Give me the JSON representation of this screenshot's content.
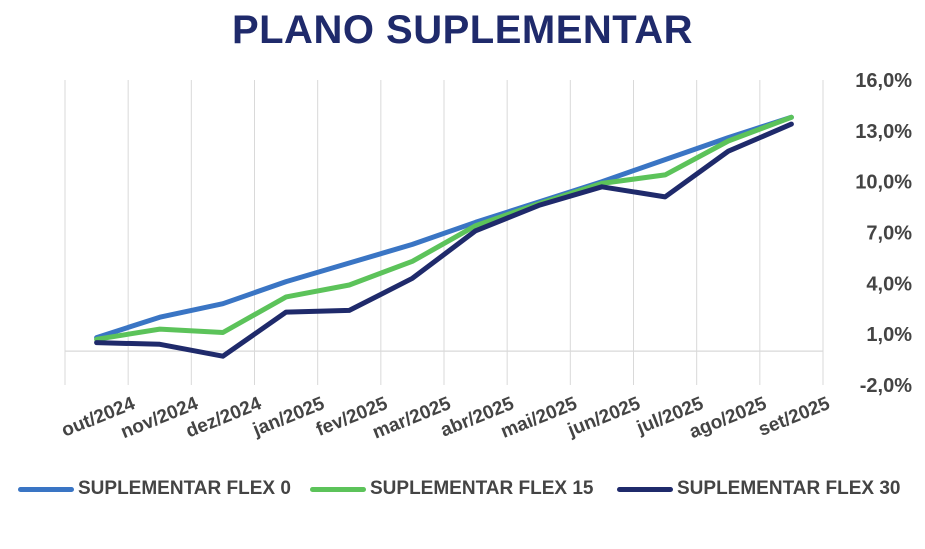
{
  "chart_data": {
    "type": "line",
    "title": "PLANO SUPLEMENTAR",
    "xlabel": "",
    "ylabel": "",
    "categories": [
      "out/2024",
      "nov/2024",
      "dez/2024",
      "jan/2025",
      "fev/2025",
      "mar/2025",
      "abr/2025",
      "mai/2025",
      "jun/2025",
      "jul/2025",
      "ago/2025",
      "set/2025"
    ],
    "yticks": [
      "16,0%",
      "13,0%",
      "10,0%",
      "7,0%",
      "4,0%",
      "1,0%",
      "-2,0%"
    ],
    "ylim": [
      -2.0,
      16.0
    ],
    "y_axis_side": "right",
    "grid": "vertical",
    "legend_position": "bottom",
    "series": [
      {
        "name": "SUPLEMENTAR FLEX 0",
        "color": "#3a75c4",
        "values": [
          0.8,
          2.0,
          2.8,
          4.1,
          5.2,
          6.3,
          7.6,
          8.8,
          10.0,
          11.3,
          12.6,
          13.8
        ]
      },
      {
        "name": "SUPLEMENTAR FLEX 15",
        "color": "#5cc35a",
        "values": [
          0.7,
          1.3,
          1.1,
          3.2,
          3.9,
          5.3,
          7.4,
          8.7,
          9.9,
          10.4,
          12.4,
          13.8
        ]
      },
      {
        "name": "SUPLEMENTAR FLEX 30",
        "color": "#1f2a6b",
        "values": [
          0.5,
          0.4,
          -0.3,
          2.3,
          2.4,
          4.3,
          7.1,
          8.6,
          9.7,
          9.1,
          11.8,
          13.4
        ]
      }
    ]
  }
}
